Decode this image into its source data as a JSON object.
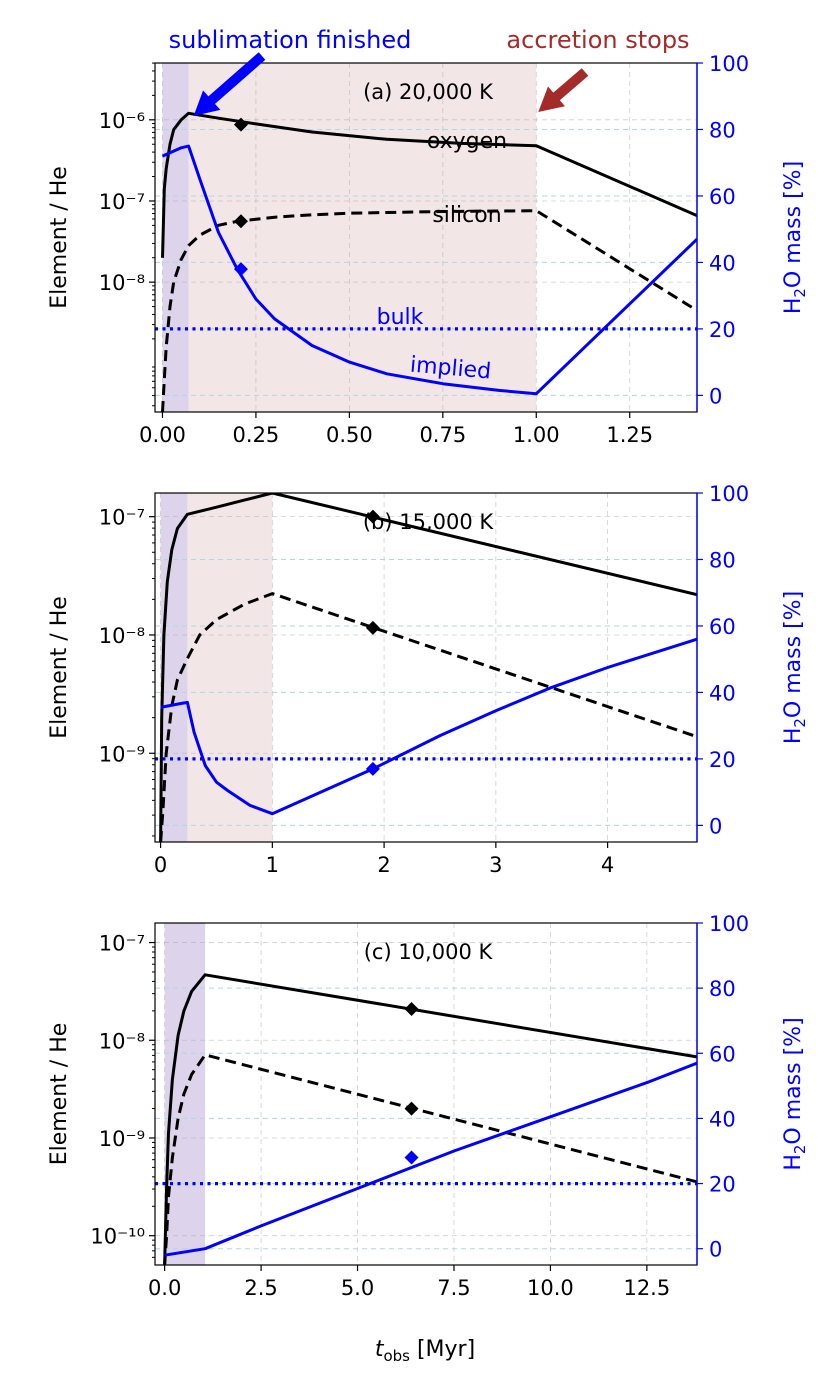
{
  "figure": {
    "annotations": {
      "sublimation": "sublimation finished",
      "accretion": "accretion stops"
    },
    "xlabel_main": "t",
    "xlabel_sub": "obs",
    "xlabel_unit": " [Myr]",
    "ylabel_left": "Element / He",
    "ylabel_right_pre": "H",
    "ylabel_right_sub": "2",
    "ylabel_right_post": "O mass [%]",
    "colors": {
      "oxygen": "#000000",
      "silicon": "#000000",
      "implied": "#0000ff",
      "bulk": "#0000ff",
      "sublimation_shade": "#ddd3ea",
      "accretion_shade": "#f3e6e6",
      "grid": "#a9a9a9",
      "right_grid": "#add8e6",
      "sublimation_arrow": "#0000ff",
      "accretion_arrow": "#a52a2a"
    }
  },
  "chart_data": [
    {
      "type": "line",
      "title": "(a) 20,000 K",
      "xlim": [
        -0.02,
        1.43
      ],
      "xticks": [
        0.0,
        0.25,
        0.5,
        0.75,
        1.0,
        1.25
      ],
      "xtick_labels": [
        "0.00",
        "0.25",
        "0.50",
        "0.75",
        "1.00",
        "1.25"
      ],
      "y_scale": "log",
      "ylim_log10": [
        -9.6,
        -5.3
      ],
      "yticks_log10": [
        -8,
        -7,
        -6
      ],
      "ytick_labels": [
        "10⁻⁸",
        "10⁻⁷",
        "10⁻⁶"
      ],
      "y2lim": [
        -5,
        100
      ],
      "y2ticks": [
        0,
        20,
        40,
        60,
        80,
        100
      ],
      "sublimation_end": 0.07,
      "accretion_end": 1.0,
      "series": [
        {
          "name": "oxygen",
          "axis": "left",
          "style": "solid",
          "x": [
            0.0,
            0.005,
            0.01,
            0.02,
            0.03,
            0.05,
            0.07,
            0.15,
            0.25,
            0.4,
            0.6,
            0.8,
            1.0,
            1.43
          ],
          "log10y": [
            -7.7,
            -6.85,
            -6.6,
            -6.3,
            -6.12,
            -6.0,
            -5.92,
            -5.98,
            -6.05,
            -6.15,
            -6.24,
            -6.29,
            -6.32,
            -7.18
          ]
        },
        {
          "name": "silicon",
          "axis": "left",
          "style": "dashed",
          "x": [
            0.0,
            0.005,
            0.01,
            0.02,
            0.03,
            0.05,
            0.07,
            0.1,
            0.15,
            0.2,
            0.3,
            0.4,
            0.5,
            0.75,
            1.0,
            1.43
          ],
          "log10y": [
            -9.6,
            -9.2,
            -8.8,
            -8.3,
            -8.0,
            -7.72,
            -7.55,
            -7.42,
            -7.3,
            -7.25,
            -7.2,
            -7.17,
            -7.15,
            -7.13,
            -7.12,
            -8.35
          ]
        },
        {
          "name": "implied",
          "axis": "right",
          "style": "solid",
          "x": [
            0.0,
            0.05,
            0.07,
            0.1,
            0.15,
            0.2,
            0.25,
            0.3,
            0.4,
            0.5,
            0.6,
            0.75,
            0.9,
            1.0,
            1.43
          ],
          "y": [
            72,
            74.5,
            75,
            65,
            49,
            38,
            29,
            23,
            15,
            10,
            6.5,
            3.5,
            1.5,
            0.5,
            47
          ]
        },
        {
          "name": "bulk",
          "axis": "right",
          "style": "dotted",
          "x": [
            -0.02,
            1.43
          ],
          "y": [
            20,
            20
          ]
        }
      ],
      "markers": [
        {
          "series": "oxygen",
          "axis": "left",
          "x": 0.21,
          "log10y": -6.06
        },
        {
          "series": "silicon",
          "axis": "left",
          "x": 0.21,
          "log10y": -7.25
        },
        {
          "series": "implied",
          "axis": "right",
          "x": 0.21,
          "y": 38
        }
      ],
      "labels": {
        "oxygen": "oxygen",
        "silicon": "silicon",
        "bulk": "bulk",
        "implied": "implied"
      }
    },
    {
      "type": "line",
      "title": "(b) 15,000 K",
      "xlim": [
        -0.05,
        4.8
      ],
      "xticks": [
        0,
        1,
        2,
        3,
        4
      ],
      "xtick_labels": [
        "0",
        "1",
        "2",
        "3",
        "4"
      ],
      "y_scale": "log",
      "ylim_log10": [
        -9.75,
        -6.8
      ],
      "yticks_log10": [
        -9,
        -8,
        -7
      ],
      "ytick_labels": [
        "10⁻⁹",
        "10⁻⁸",
        "10⁻⁷"
      ],
      "y2lim": [
        -5,
        100
      ],
      "y2ticks": [
        0,
        20,
        40,
        60,
        80,
        100
      ],
      "sublimation_end": 0.24,
      "accretion_end": 1.0,
      "series": [
        {
          "name": "oxygen",
          "axis": "left",
          "style": "solid",
          "x": [
            0.0,
            0.01,
            0.03,
            0.06,
            0.1,
            0.15,
            0.24,
            0.5,
            0.75,
            1.0,
            4.8
          ],
          "log10y": [
            -9.75,
            -8.7,
            -8.0,
            -7.55,
            -7.28,
            -7.1,
            -6.98,
            -6.92,
            -6.86,
            -6.8,
            -7.66
          ]
        },
        {
          "name": "silicon",
          "axis": "left",
          "style": "dashed",
          "x": [
            0.0,
            0.02,
            0.05,
            0.1,
            0.15,
            0.24,
            0.35,
            0.5,
            0.75,
            1.0,
            4.8
          ],
          "log10y": [
            -9.75,
            -9.5,
            -9.0,
            -8.6,
            -8.38,
            -8.2,
            -8.0,
            -7.87,
            -7.74,
            -7.65,
            -8.86
          ]
        },
        {
          "name": "implied",
          "axis": "right",
          "style": "solid",
          "x": [
            0.0,
            0.15,
            0.24,
            0.3,
            0.4,
            0.5,
            0.6,
            0.8,
            1.0,
            1.9,
            2.5,
            3.0,
            3.5,
            4.0,
            4.8
          ],
          "y": [
            35.5,
            36.5,
            37,
            28,
            18,
            13,
            10.5,
            6,
            3.5,
            17,
            27,
            34.5,
            41.5,
            47.5,
            56
          ]
        },
        {
          "name": "bulk",
          "axis": "right",
          "style": "dotted",
          "x": [
            -0.05,
            4.8
          ],
          "y": [
            20,
            20
          ]
        }
      ],
      "markers": [
        {
          "series": "oxygen",
          "axis": "left",
          "x": 1.9,
          "log10y": -7.0
        },
        {
          "series": "silicon",
          "axis": "left",
          "x": 1.9,
          "log10y": -7.94
        },
        {
          "series": "implied",
          "axis": "right",
          "x": 1.9,
          "y": 17
        }
      ]
    },
    {
      "type": "line",
      "title": "(c) 10,000 K",
      "xlim": [
        -0.25,
        13.8
      ],
      "xticks": [
        0,
        2.5,
        5,
        7.5,
        10,
        12.5
      ],
      "xtick_labels": [
        "0.0",
        "2.5",
        "5.0",
        "7.5",
        "10.0",
        "12.5"
      ],
      "y_scale": "log",
      "ylim_log10": [
        -10.3,
        -6.8
      ],
      "yticks_log10": [
        -10,
        -9,
        -8,
        -7
      ],
      "ytick_labels": [
        "10⁻¹⁰",
        "10⁻⁹",
        "10⁻⁸",
        "10⁻⁷"
      ],
      "y2lim": [
        -5,
        100
      ],
      "y2ticks": [
        0,
        20,
        40,
        60,
        80,
        100
      ],
      "sublimation_end": 1.05,
      "series": [
        {
          "name": "oxygen",
          "axis": "left",
          "style": "solid",
          "x": [
            0.0,
            0.05,
            0.1,
            0.2,
            0.35,
            0.5,
            0.7,
            1.05,
            13.8
          ],
          "log10y": [
            -10.3,
            -9.5,
            -8.95,
            -8.4,
            -7.95,
            -7.7,
            -7.5,
            -7.33,
            -8.17
          ]
        },
        {
          "name": "silicon",
          "axis": "left",
          "style": "dashed",
          "x": [
            0.0,
            0.05,
            0.1,
            0.2,
            0.35,
            0.5,
            0.7,
            1.05,
            13.8
          ],
          "log10y": [
            -10.3,
            -10.0,
            -9.6,
            -9.2,
            -8.8,
            -8.55,
            -8.35,
            -8.15,
            -9.45
          ]
        },
        {
          "name": "implied",
          "axis": "right",
          "style": "solid",
          "x": [
            0.0,
            1.05,
            2.5,
            5.0,
            7.5,
            10.0,
            12.5,
            13.8
          ],
          "y": [
            -2,
            0,
            7,
            18.5,
            30,
            40.5,
            51,
            57
          ]
        },
        {
          "name": "bulk",
          "axis": "right",
          "style": "dotted",
          "x": [
            -0.25,
            13.8
          ],
          "y": [
            20,
            20
          ]
        }
      ],
      "markers": [
        {
          "series": "oxygen",
          "axis": "left",
          "x": 6.4,
          "log10y": -7.68
        },
        {
          "series": "silicon",
          "axis": "left",
          "x": 6.4,
          "log10y": -8.7
        },
        {
          "series": "implied",
          "axis": "right",
          "x": 6.4,
          "y": 28
        }
      ]
    }
  ]
}
